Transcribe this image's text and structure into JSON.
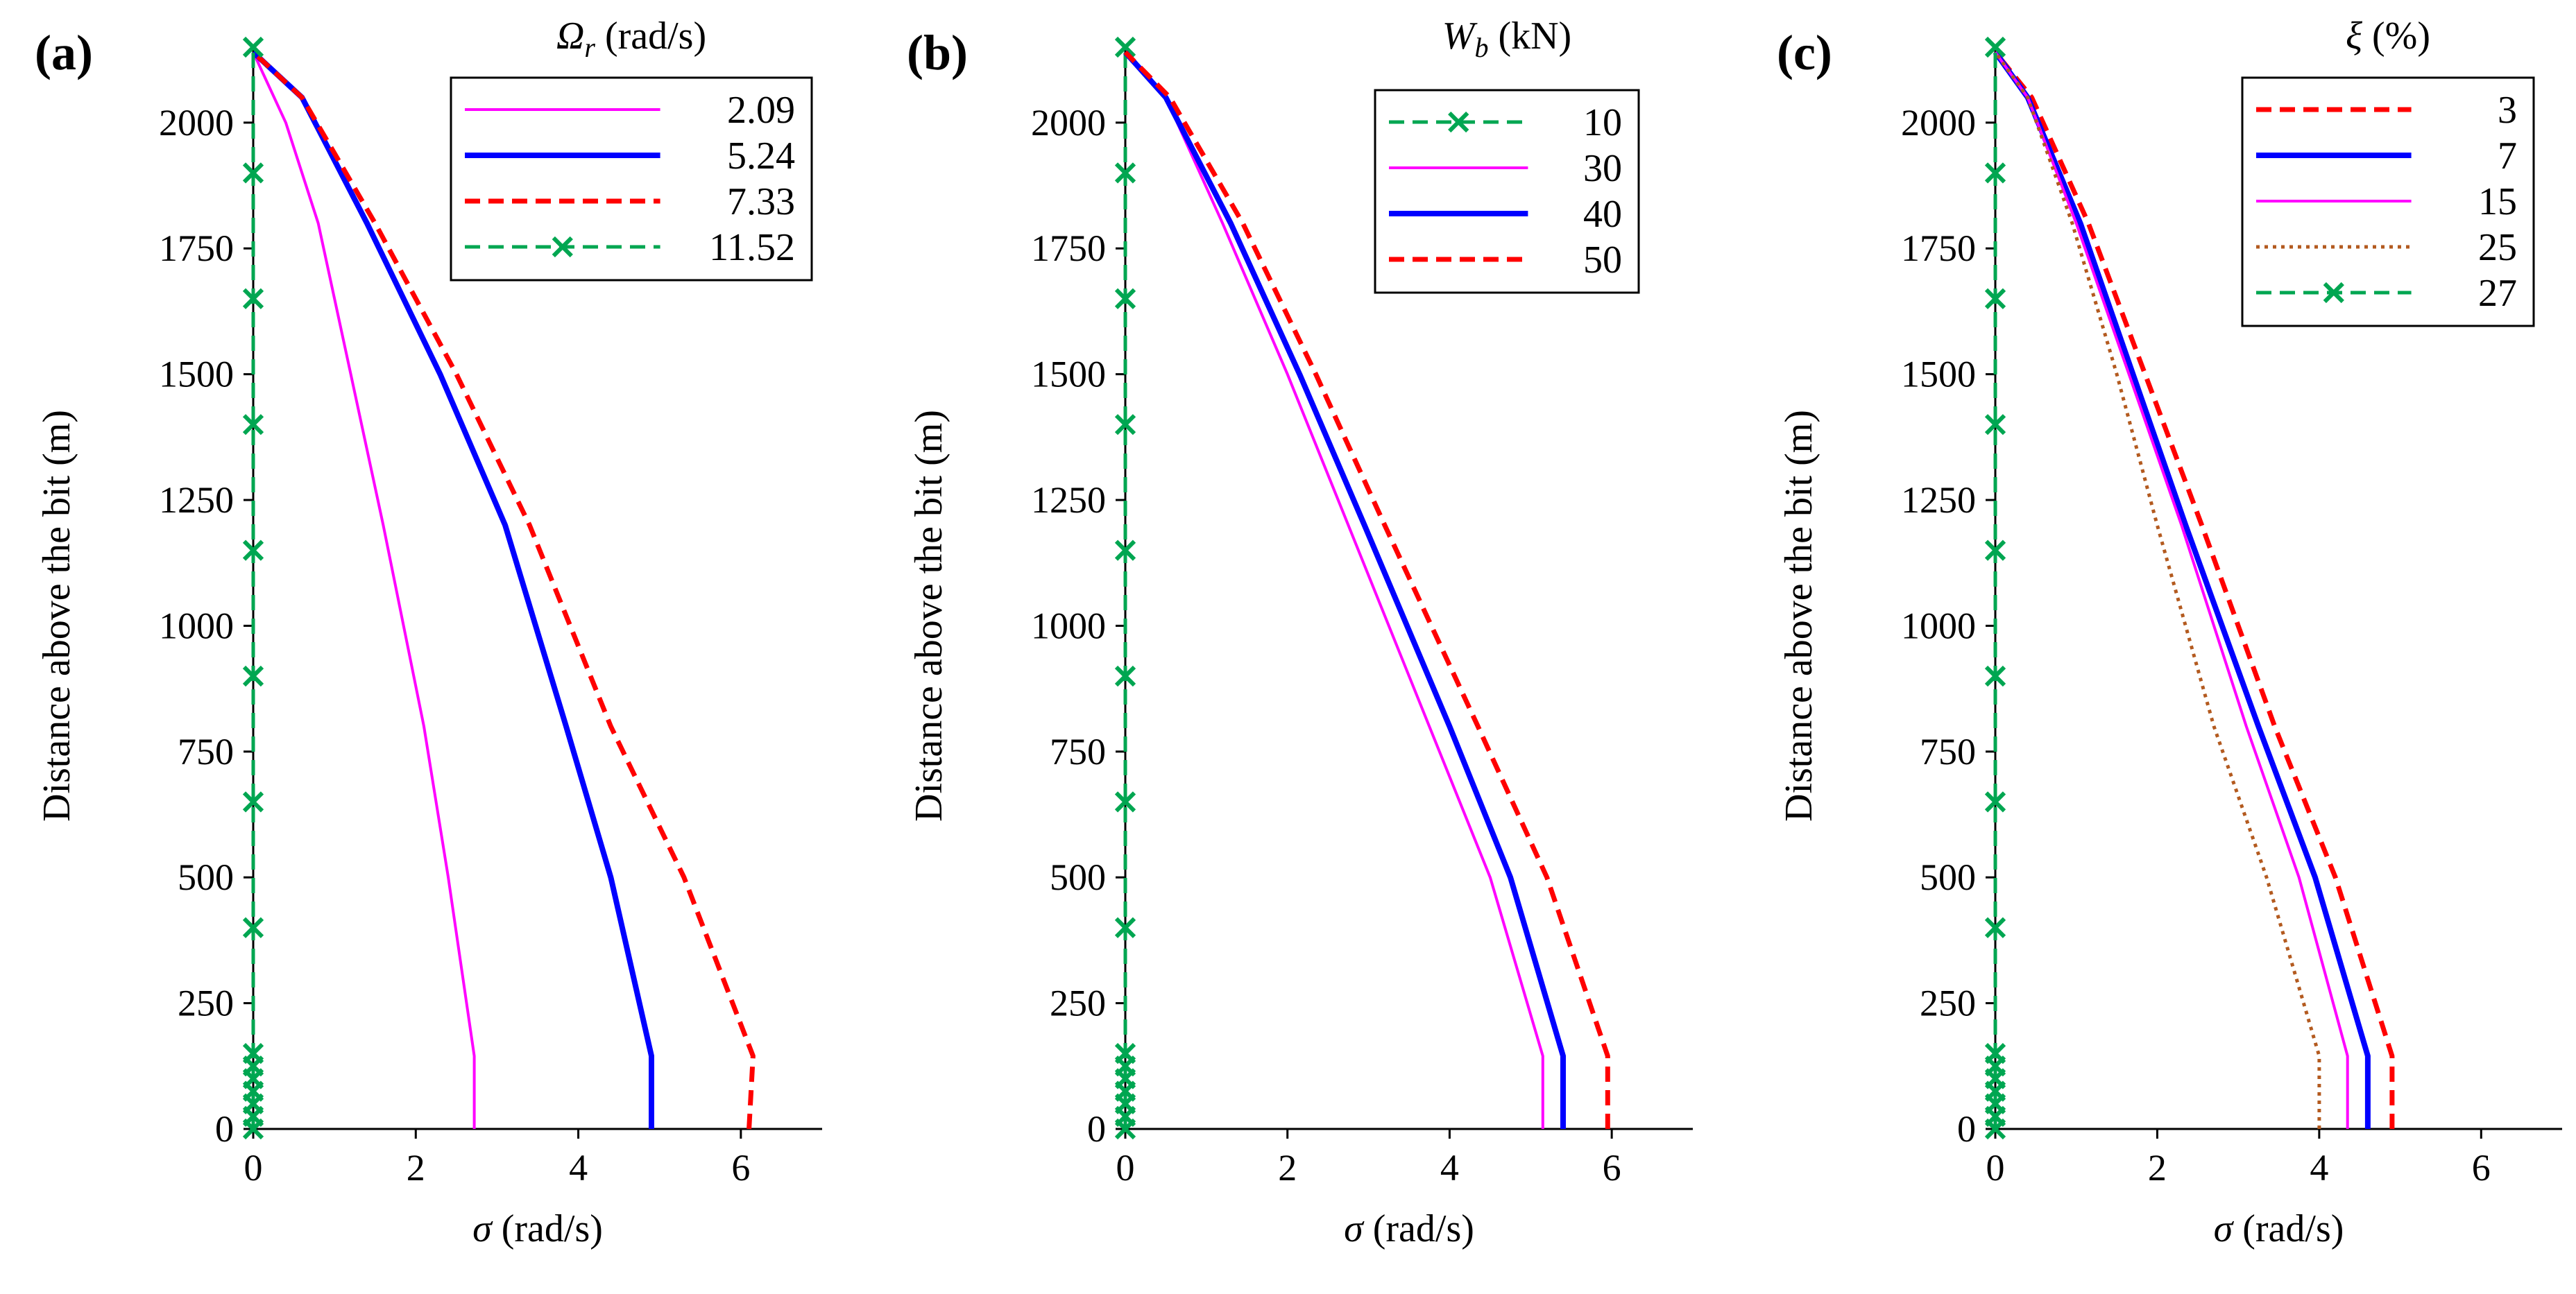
{
  "chart_data": [
    {
      "type": "line",
      "panel_label": "(a)",
      "xlabel": "σ (rad/s)",
      "ylabel": "Distance above the bit (m)",
      "xlim": [
        0,
        7
      ],
      "ylim": [
        0,
        2150
      ],
      "xticks": [
        0,
        2,
        4,
        6
      ],
      "yticks": [
        0,
        250,
        500,
        750,
        1000,
        1250,
        1500,
        1750,
        2000
      ],
      "legend": {
        "title": "Ω_r (rad/s)",
        "title_main": "Ω",
        "title_sub": "r",
        "title_rest": " (rad/s)",
        "position": "top-right"
      },
      "series": [
        {
          "name": "2.09",
          "color": "#ff00ff",
          "style": "solid-thin",
          "points": [
            [
              2.72,
              0
            ],
            [
              2.72,
              50
            ],
            [
              2.72,
              100
            ],
            [
              2.72,
              145
            ],
            [
              2.4,
              500
            ],
            [
              2.1,
              800
            ],
            [
              1.6,
              1200
            ],
            [
              1.2,
              1500
            ],
            [
              0.8,
              1800
            ],
            [
              0.4,
              2000
            ],
            [
              0,
              2140
            ]
          ]
        },
        {
          "name": "5.24",
          "color": "#0000ff",
          "style": "solid-thick",
          "points": [
            [
              4.9,
              0
            ],
            [
              4.9,
              145
            ],
            [
              4.4,
              500
            ],
            [
              3.85,
              800
            ],
            [
              3.1,
              1200
            ],
            [
              2.3,
              1500
            ],
            [
              1.4,
              1800
            ],
            [
              0.6,
              2050
            ],
            [
              0,
              2140
            ]
          ]
        },
        {
          "name": "7.33",
          "color": "#ff0000",
          "style": "dashed",
          "points": [
            [
              6.1,
              0
            ],
            [
              6.15,
              145
            ],
            [
              5.3,
              500
            ],
            [
              4.4,
              800
            ],
            [
              3.4,
              1200
            ],
            [
              2.5,
              1500
            ],
            [
              1.5,
              1800
            ],
            [
              0.6,
              2050
            ],
            [
              0,
              2140
            ]
          ]
        },
        {
          "name": "11.52",
          "color": "#00a651",
          "style": "dashed-x",
          "points": [
            [
              0,
              0
            ],
            [
              0,
              25
            ],
            [
              0,
              50
            ],
            [
              0,
              75
            ],
            [
              0,
              100
            ],
            [
              0,
              125
            ],
            [
              0,
              150
            ],
            [
              0,
              400
            ],
            [
              0,
              650
            ],
            [
              0,
              900
            ],
            [
              0,
              1150
            ],
            [
              0,
              1400
            ],
            [
              0,
              1650
            ],
            [
              0,
              1900
            ],
            [
              0,
              2150
            ]
          ]
        }
      ]
    },
    {
      "type": "line",
      "panel_label": "(b)",
      "xlabel": "σ (rad/s)",
      "ylabel": "Distance above the bit (m)",
      "xlim": [
        0,
        7
      ],
      "ylim": [
        0,
        2150
      ],
      "xticks": [
        0,
        2,
        4,
        6
      ],
      "yticks": [
        0,
        250,
        500,
        750,
        1000,
        1250,
        1500,
        1750,
        2000
      ],
      "legend": {
        "title": "W_b (kN)",
        "title_main": "W",
        "title_sub": "b",
        "title_rest": " (kN)",
        "position": "top-right"
      },
      "series": [
        {
          "name": "10",
          "color": "#00a651",
          "style": "dashed-x",
          "points": [
            [
              0,
              0
            ],
            [
              0,
              25
            ],
            [
              0,
              50
            ],
            [
              0,
              75
            ],
            [
              0,
              100
            ],
            [
              0,
              125
            ],
            [
              0,
              150
            ],
            [
              0,
              400
            ],
            [
              0,
              650
            ],
            [
              0,
              900
            ],
            [
              0,
              1150
            ],
            [
              0,
              1400
            ],
            [
              0,
              1650
            ],
            [
              0,
              1900
            ],
            [
              0,
              2150
            ]
          ]
        },
        {
          "name": "30",
          "color": "#ff00ff",
          "style": "solid-thin",
          "points": [
            [
              5.15,
              0
            ],
            [
              5.15,
              145
            ],
            [
              4.5,
              500
            ],
            [
              3.75,
              800
            ],
            [
              2.75,
              1200
            ],
            [
              2.0,
              1500
            ],
            [
              1.2,
              1800
            ],
            [
              0.5,
              2050
            ],
            [
              0,
              2140
            ]
          ]
        },
        {
          "name": "40",
          "color": "#0000ff",
          "style": "solid-thick",
          "points": [
            [
              5.4,
              0
            ],
            [
              5.4,
              145
            ],
            [
              4.75,
              500
            ],
            [
              4.0,
              800
            ],
            [
              2.95,
              1200
            ],
            [
              2.15,
              1500
            ],
            [
              1.3,
              1800
            ],
            [
              0.5,
              2050
            ],
            [
              0,
              2140
            ]
          ]
        },
        {
          "name": "50",
          "color": "#ff0000",
          "style": "dashed",
          "points": [
            [
              5.95,
              0
            ],
            [
              5.95,
              145
            ],
            [
              5.2,
              500
            ],
            [
              4.35,
              800
            ],
            [
              3.2,
              1200
            ],
            [
              2.35,
              1500
            ],
            [
              1.45,
              1800
            ],
            [
              0.55,
              2050
            ],
            [
              0,
              2140
            ]
          ]
        }
      ]
    },
    {
      "type": "line",
      "panel_label": "(c)",
      "xlabel": "σ (rad/s)",
      "ylabel": "Distance above the bit (m)",
      "xlim": [
        0,
        7
      ],
      "ylim": [
        0,
        2150
      ],
      "xticks": [
        0,
        2,
        4,
        6
      ],
      "yticks": [
        0,
        250,
        500,
        750,
        1000,
        1250,
        1500,
        1750,
        2000
      ],
      "legend": {
        "title": "ξ (%)",
        "title_main": "ξ",
        "title_sub": "",
        "title_rest": " (%)",
        "position": "top-right"
      },
      "series": [
        {
          "name": "3",
          "color": "#ff0000",
          "style": "dashed",
          "points": [
            [
              4.9,
              0
            ],
            [
              4.9,
              145
            ],
            [
              4.2,
              500
            ],
            [
              3.45,
              800
            ],
            [
              2.55,
              1200
            ],
            [
              1.85,
              1500
            ],
            [
              1.15,
              1800
            ],
            [
              0.45,
              2050
            ],
            [
              0,
              2140
            ]
          ]
        },
        {
          "name": "7",
          "color": "#0000ff",
          "style": "solid-thick",
          "points": [
            [
              4.6,
              0
            ],
            [
              4.6,
              145
            ],
            [
              3.95,
              500
            ],
            [
              3.25,
              800
            ],
            [
              2.35,
              1200
            ],
            [
              1.7,
              1500
            ],
            [
              1.05,
              1800
            ],
            [
              0.4,
              2050
            ],
            [
              0,
              2140
            ]
          ]
        },
        {
          "name": "15",
          "color": "#ff00ff",
          "style": "solid-thin",
          "points": [
            [
              4.35,
              0
            ],
            [
              4.35,
              145
            ],
            [
              3.75,
              500
            ],
            [
              3.1,
              800
            ],
            [
              2.3,
              1200
            ],
            [
              1.65,
              1500
            ],
            [
              1.0,
              1800
            ],
            [
              0.4,
              2050
            ],
            [
              0,
              2140
            ]
          ]
        },
        {
          "name": "25",
          "color": "#b35a1f",
          "style": "dotted",
          "points": [
            [
              4.0,
              0
            ],
            [
              4.0,
              145
            ],
            [
              3.35,
              500
            ],
            [
              2.7,
              800
            ],
            [
              2.0,
              1200
            ],
            [
              1.5,
              1500
            ],
            [
              0.95,
              1800
            ],
            [
              0.4,
              2050
            ],
            [
              0,
              2140
            ]
          ]
        },
        {
          "name": "27",
          "color": "#00a651",
          "style": "dashed-x",
          "points": [
            [
              0,
              0
            ],
            [
              0,
              25
            ],
            [
              0,
              50
            ],
            [
              0,
              75
            ],
            [
              0,
              100
            ],
            [
              0,
              125
            ],
            [
              0,
              150
            ],
            [
              0,
              400
            ],
            [
              0,
              650
            ],
            [
              0,
              900
            ],
            [
              0,
              1150
            ],
            [
              0,
              1400
            ],
            [
              0,
              1650
            ],
            [
              0,
              1900
            ],
            [
              0,
              2150
            ]
          ]
        }
      ]
    }
  ]
}
